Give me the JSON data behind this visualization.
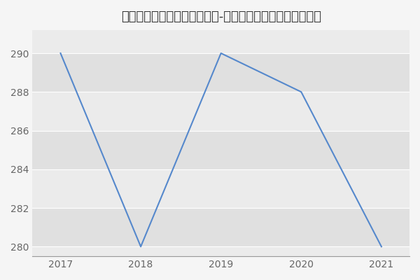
{
  "title": "新疆农业大学农学院遗传学（-历年复试）研究生录取分数线",
  "x_values": [
    2017,
    2018,
    2019,
    2020,
    2021
  ],
  "y_values": [
    290,
    280,
    290,
    288,
    280
  ],
  "line_color": "#5588cc",
  "bg_color": "#f5f5f5",
  "plot_bg_color": "#ebebeb",
  "band_color_light": "#e0e0e0",
  "band_color_dark": "#ebebeb",
  "grid_color": "#ffffff",
  "ylim": [
    279.5,
    291.2
  ],
  "xlim": [
    2016.65,
    2021.35
  ],
  "yticks": [
    280,
    282,
    284,
    286,
    288,
    290
  ],
  "xticks": [
    2017,
    2018,
    2019,
    2020,
    2021
  ],
  "title_fontsize": 13,
  "tick_fontsize": 10,
  "line_width": 1.5
}
